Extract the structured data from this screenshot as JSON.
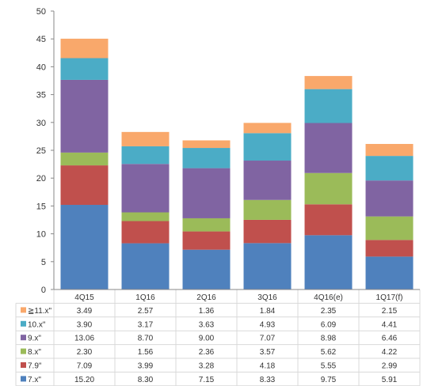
{
  "chart_data": {
    "type": "bar",
    "stacked": true,
    "categories": [
      "4Q15",
      "1Q16",
      "2Q16",
      "3Q16",
      "4Q16(e)",
      "1Q17(f)"
    ],
    "ylim": [
      0,
      50
    ],
    "yticks": [
      0,
      5,
      10,
      15,
      20,
      25,
      30,
      35,
      40,
      45,
      50
    ],
    "grid": false,
    "legend": "table-below",
    "series": [
      {
        "name": "7.x\"",
        "color": "#4f81bd",
        "values": [
          15.2,
          8.3,
          7.15,
          8.33,
          9.75,
          5.91
        ]
      },
      {
        "name": "7.9\"",
        "color": "#c0504d",
        "values": [
          7.09,
          3.99,
          3.28,
          4.18,
          5.55,
          2.99
        ]
      },
      {
        "name": "8.x\"",
        "color": "#9bbb59",
        "values": [
          2.3,
          1.56,
          2.36,
          3.57,
          5.62,
          4.22
        ]
      },
      {
        "name": "9.x\"",
        "color": "#8064a2",
        "values": [
          13.06,
          8.7,
          9.0,
          7.07,
          8.98,
          6.46
        ]
      },
      {
        "name": "10.x\"",
        "color": "#4bacc6",
        "values": [
          3.9,
          3.17,
          3.63,
          4.93,
          6.09,
          4.41
        ]
      },
      {
        "name": "≧11.x\"",
        "color": "#f9a86b",
        "values": [
          3.49,
          2.57,
          1.36,
          1.84,
          2.35,
          2.15
        ]
      }
    ],
    "table_rows": [
      {
        "name": "≧11.x\"",
        "cells": [
          "3.49",
          "2.57",
          "1.36",
          "1.84",
          "2.35",
          "2.15"
        ]
      },
      {
        "name": "10.x\"",
        "cells": [
          "3.90",
          "3.17",
          "3.63",
          "4.93",
          "6.09",
          "4.41"
        ]
      },
      {
        "name": "9.x\"",
        "cells": [
          "13.06",
          "8.70",
          "9.00",
          "7.07",
          "8.98",
          "6.46"
        ]
      },
      {
        "name": "8.x\"",
        "cells": [
          "2.30",
          "1.56",
          "2.36",
          "3.57",
          "5.62",
          "4.22"
        ]
      },
      {
        "name": "7.9\"",
        "cells": [
          "7.09",
          "3.99",
          "3.28",
          "4.18",
          "5.55",
          "2.99"
        ]
      },
      {
        "name": "7.x\"",
        "cells": [
          "15.20",
          "8.30",
          "7.15",
          "8.33",
          "9.75",
          "5.91"
        ]
      }
    ]
  }
}
